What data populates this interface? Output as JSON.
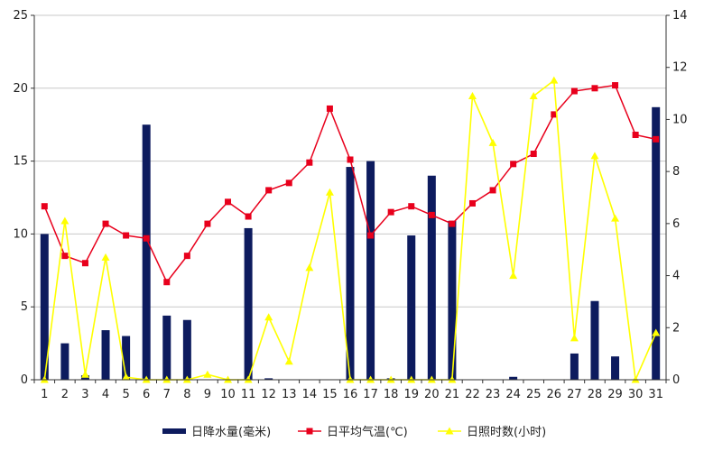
{
  "chart_data": {
    "type": "bar",
    "title": "",
    "xlabel": "",
    "ylabel": "",
    "categories": [
      "1",
      "2",
      "3",
      "4",
      "5",
      "6",
      "7",
      "8",
      "9",
      "10",
      "11",
      "12",
      "13",
      "14",
      "15",
      "16",
      "17",
      "18",
      "19",
      "20",
      "21",
      "22",
      "23",
      "24",
      "25",
      "26",
      "27",
      "28",
      "29",
      "30",
      "31"
    ],
    "y_left": {
      "ylim": [
        0,
        25
      ],
      "ticks": [
        0,
        5,
        10,
        15,
        20,
        25
      ]
    },
    "y_right": {
      "ylim": [
        0,
        14
      ],
      "ticks": [
        0,
        2,
        4,
        6,
        8,
        10,
        12,
        14
      ]
    },
    "grid": true,
    "legend_position": "bottom",
    "series": [
      {
        "name": "日降水量(毫米)",
        "type": "bar",
        "axis": "left",
        "color": "#0d1b5e",
        "values": [
          10.0,
          2.5,
          0.3,
          3.4,
          3.0,
          17.5,
          4.4,
          4.1,
          0.0,
          0.0,
          10.4,
          0.1,
          0.0,
          0.0,
          0.0,
          14.6,
          15.0,
          0.1,
          9.9,
          14.0,
          10.9,
          0.0,
          0.0,
          0.2,
          0.0,
          0.0,
          1.8,
          5.4,
          1.6,
          0.0,
          18.7
        ]
      },
      {
        "name": "日平均气温(℃)",
        "type": "line",
        "axis": "left",
        "color": "#e8001c",
        "marker": "square",
        "values": [
          11.9,
          8.5,
          8.0,
          10.7,
          9.9,
          9.7,
          6.7,
          8.5,
          10.7,
          12.2,
          11.2,
          13.0,
          13.5,
          14.9,
          18.6,
          15.1,
          9.9,
          11.5,
          11.9,
          11.3,
          10.7,
          12.1,
          13.0,
          14.8,
          15.5,
          18.2,
          19.8,
          20.0,
          20.2,
          16.8,
          16.5
        ]
      },
      {
        "name": "日照时数(小时)",
        "type": "line",
        "axis": "right",
        "color": "#ffff00",
        "marker": "triangle",
        "values": [
          0.0,
          6.1,
          0.2,
          4.7,
          0.1,
          0.0,
          0.0,
          0.0,
          0.2,
          0.0,
          0.0,
          2.4,
          0.7,
          4.3,
          7.2,
          0.0,
          0.0,
          0.0,
          0.0,
          0.0,
          0.0,
          10.9,
          9.1,
          4.0,
          10.9,
          11.5,
          1.6,
          8.6,
          6.2,
          0.0,
          1.8
        ]
      }
    ]
  }
}
